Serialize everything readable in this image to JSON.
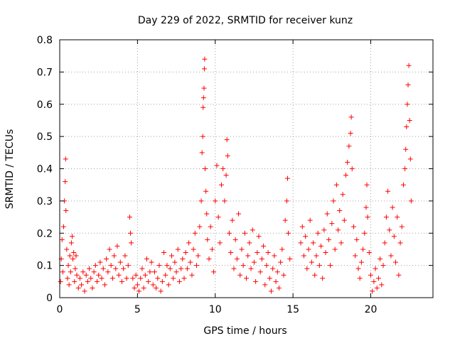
{
  "chart_data": {
    "type": "scatter",
    "title": "Day 229 of 2022, SRMTID for receiver kunz",
    "xlabel": "GPS time / hours",
    "ylabel": "SRMTID / TECUs",
    "xlim": [
      0,
      24
    ],
    "ylim": [
      0,
      0.8
    ],
    "xticks": [
      0,
      5,
      10,
      15,
      20
    ],
    "yticks": [
      0,
      0.1,
      0.2,
      0.3,
      0.4,
      0.5,
      0.6,
      0.7,
      0.8
    ],
    "xtick_labels": [
      "0",
      "5",
      "10",
      "15",
      "20"
    ],
    "ytick_labels": [
      "0",
      "0.1",
      "0.2",
      "0.3",
      "0.4",
      "0.5",
      "0.6",
      "0.7",
      "0.8"
    ],
    "grid": true,
    "marker": "+",
    "color": "#ff0000",
    "series": [
      {
        "name": "SRMTID",
        "points": [
          [
            0.05,
            0.05
          ],
          [
            0.1,
            0.12
          ],
          [
            0.15,
            0.18
          ],
          [
            0.2,
            0.08
          ],
          [
            0.25,
            0.22
          ],
          [
            0.3,
            0.3
          ],
          [
            0.35,
            0.36
          ],
          [
            0.38,
            0.43
          ],
          [
            0.4,
            0.27
          ],
          [
            0.45,
            0.15
          ],
          [
            0.5,
            0.06
          ],
          [
            0.55,
            0.1
          ],
          [
            0.6,
            0.04
          ],
          [
            0.65,
            0.13
          ],
          [
            0.7,
            0.08
          ],
          [
            0.75,
            0.17
          ],
          [
            0.8,
            0.19
          ],
          [
            0.85,
            0.12
          ],
          [
            0.9,
            0.14
          ],
          [
            0.95,
            0.05
          ],
          [
            1.0,
            0.09
          ],
          [
            1.05,
            0.13
          ],
          [
            1.1,
            0.07
          ],
          [
            1.2,
            0.03
          ],
          [
            1.3,
            0.06
          ],
          [
            1.4,
            0.04
          ],
          [
            1.5,
            0.08
          ],
          [
            1.6,
            0.02
          ],
          [
            1.7,
            0.07
          ],
          [
            1.8,
            0.05
          ],
          [
            1.9,
            0.09
          ],
          [
            2.0,
            0.06
          ],
          [
            2.1,
            0.03
          ],
          [
            2.2,
            0.08
          ],
          [
            2.3,
            0.1
          ],
          [
            2.4,
            0.05
          ],
          [
            2.5,
            0.07
          ],
          [
            2.6,
            0.11
          ],
          [
            2.7,
            0.06
          ],
          [
            2.8,
            0.09
          ],
          [
            2.9,
            0.04
          ],
          [
            3.0,
            0.12
          ],
          [
            3.1,
            0.08
          ],
          [
            3.2,
            0.15
          ],
          [
            3.3,
            0.1
          ],
          [
            3.4,
            0.06
          ],
          [
            3.5,
            0.13
          ],
          [
            3.6,
            0.09
          ],
          [
            3.7,
            0.16
          ],
          [
            3.8,
            0.07
          ],
          [
            3.9,
            0.11
          ],
          [
            4.0,
            0.05
          ],
          [
            4.1,
            0.09
          ],
          [
            4.2,
            0.13
          ],
          [
            4.3,
            0.06
          ],
          [
            4.4,
            0.1
          ],
          [
            4.5,
            0.25
          ],
          [
            4.55,
            0.2
          ],
          [
            4.6,
            0.17
          ],
          [
            4.7,
            0.06
          ],
          [
            4.8,
            0.03
          ],
          [
            4.9,
            0.07
          ],
          [
            5.0,
            0.04
          ],
          [
            5.1,
            0.02
          ],
          [
            5.2,
            0.06
          ],
          [
            5.3,
            0.09
          ],
          [
            5.4,
            0.03
          ],
          [
            5.5,
            0.07
          ],
          [
            5.6,
            0.12
          ],
          [
            5.7,
            0.05
          ],
          [
            5.8,
            0.08
          ],
          [
            5.9,
            0.11
          ],
          [
            6.0,
            0.04
          ],
          [
            6.1,
            0.08
          ],
          [
            6.2,
            0.03
          ],
          [
            6.3,
            0.06
          ],
          [
            6.4,
            0.1
          ],
          [
            6.5,
            0.02
          ],
          [
            6.6,
            0.05
          ],
          [
            6.7,
            0.14
          ],
          [
            6.8,
            0.07
          ],
          [
            6.9,
            0.1
          ],
          [
            7.0,
            0.04
          ],
          [
            7.1,
            0.09
          ],
          [
            7.2,
            0.13
          ],
          [
            7.3,
            0.06
          ],
          [
            7.4,
            0.11
          ],
          [
            7.5,
            0.08
          ],
          [
            7.6,
            0.15
          ],
          [
            7.7,
            0.05
          ],
          [
            7.8,
            0.09
          ],
          [
            7.9,
            0.12
          ],
          [
            8.0,
            0.06
          ],
          [
            8.1,
            0.14
          ],
          [
            8.2,
            0.09
          ],
          [
            8.3,
            0.17
          ],
          [
            8.4,
            0.11
          ],
          [
            8.5,
            0.07
          ],
          [
            8.6,
            0.15
          ],
          [
            8.7,
            0.2
          ],
          [
            8.8,
            0.1
          ],
          [
            8.9,
            0.13
          ],
          [
            9.0,
            0.22
          ],
          [
            9.1,
            0.3
          ],
          [
            9.15,
            0.45
          ],
          [
            9.2,
            0.5
          ],
          [
            9.22,
            0.59
          ],
          [
            9.25,
            0.62
          ],
          [
            9.28,
            0.65
          ],
          [
            9.3,
            0.71
          ],
          [
            9.32,
            0.74
          ],
          [
            9.35,
            0.4
          ],
          [
            9.4,
            0.33
          ],
          [
            9.45,
            0.26
          ],
          [
            9.5,
            0.18
          ],
          [
            9.6,
            0.12
          ],
          [
            9.7,
            0.22
          ],
          [
            9.8,
            0.15
          ],
          [
            9.9,
            0.08
          ],
          [
            10.0,
            0.3
          ],
          [
            10.1,
            0.41
          ],
          [
            10.2,
            0.25
          ],
          [
            10.3,
            0.17
          ],
          [
            10.4,
            0.35
          ],
          [
            10.5,
            0.4
          ],
          [
            10.6,
            0.3
          ],
          [
            10.7,
            0.38
          ],
          [
            10.75,
            0.49
          ],
          [
            10.8,
            0.44
          ],
          [
            10.9,
            0.2
          ],
          [
            11.0,
            0.14
          ],
          [
            11.1,
            0.24
          ],
          [
            11.2,
            0.09
          ],
          [
            11.3,
            0.18
          ],
          [
            11.4,
            0.12
          ],
          [
            11.5,
            0.26
          ],
          [
            11.6,
            0.07
          ],
          [
            11.7,
            0.15
          ],
          [
            11.8,
            0.1
          ],
          [
            11.9,
            0.2
          ],
          [
            12.0,
            0.06
          ],
          [
            12.1,
            0.13
          ],
          [
            12.2,
            0.17
          ],
          [
            12.3,
            0.09
          ],
          [
            12.4,
            0.21
          ],
          [
            12.5,
            0.11
          ],
          [
            12.6,
            0.05
          ],
          [
            12.7,
            0.14
          ],
          [
            12.8,
            0.19
          ],
          [
            12.9,
            0.08
          ],
          [
            13.0,
            0.12
          ],
          [
            13.1,
            0.16
          ],
          [
            13.2,
            0.04
          ],
          [
            13.3,
            0.1
          ],
          [
            13.4,
            0.14
          ],
          [
            13.5,
            0.06
          ],
          [
            13.6,
            0.02
          ],
          [
            13.7,
            0.09
          ],
          [
            13.8,
            0.13
          ],
          [
            13.9,
            0.05
          ],
          [
            14.0,
            0.08
          ],
          [
            14.1,
            0.03
          ],
          [
            14.2,
            0.11
          ],
          [
            14.3,
            0.15
          ],
          [
            14.4,
            0.07
          ],
          [
            14.5,
            0.24
          ],
          [
            14.6,
            0.3
          ],
          [
            14.65,
            0.37
          ],
          [
            14.7,
            0.2
          ],
          [
            14.8,
            0.12
          ],
          [
            15.5,
            0.17
          ],
          [
            15.6,
            0.22
          ],
          [
            15.7,
            0.13
          ],
          [
            15.8,
            0.19
          ],
          [
            15.9,
            0.09
          ],
          [
            16.0,
            0.15
          ],
          [
            16.1,
            0.24
          ],
          [
            16.2,
            0.11
          ],
          [
            16.3,
            0.17
          ],
          [
            16.4,
            0.07
          ],
          [
            16.5,
            0.13
          ],
          [
            16.6,
            0.2
          ],
          [
            16.7,
            0.1
          ],
          [
            16.8,
            0.16
          ],
          [
            16.9,
            0.06
          ],
          [
            17.0,
            0.21
          ],
          [
            17.1,
            0.14
          ],
          [
            17.2,
            0.26
          ],
          [
            17.3,
            0.18
          ],
          [
            17.4,
            0.1
          ],
          [
            17.5,
            0.23
          ],
          [
            17.6,
            0.3
          ],
          [
            17.7,
            0.15
          ],
          [
            17.8,
            0.35
          ],
          [
            17.9,
            0.21
          ],
          [
            18.0,
            0.27
          ],
          [
            18.1,
            0.17
          ],
          [
            18.2,
            0.32
          ],
          [
            18.3,
            0.24
          ],
          [
            18.4,
            0.38
          ],
          [
            18.5,
            0.42
          ],
          [
            18.6,
            0.47
          ],
          [
            18.7,
            0.51
          ],
          [
            18.75,
            0.56
          ],
          [
            18.8,
            0.4
          ],
          [
            18.9,
            0.22
          ],
          [
            19.0,
            0.13
          ],
          [
            19.1,
            0.18
          ],
          [
            19.2,
            0.09
          ],
          [
            19.3,
            0.06
          ],
          [
            19.4,
            0.11
          ],
          [
            19.5,
            0.15
          ],
          [
            19.6,
            0.2
          ],
          [
            19.7,
            0.28
          ],
          [
            19.75,
            0.35
          ],
          [
            19.8,
            0.25
          ],
          [
            19.9,
            0.14
          ],
          [
            20.0,
            0.07
          ],
          [
            20.1,
            0.02
          ],
          [
            20.2,
            0.05
          ],
          [
            20.3,
            0.09
          ],
          [
            20.4,
            0.03
          ],
          [
            20.5,
            0.06
          ],
          [
            20.6,
            0.12
          ],
          [
            20.7,
            0.04
          ],
          [
            20.8,
            0.1
          ],
          [
            20.9,
            0.17
          ],
          [
            21.0,
            0.25
          ],
          [
            21.1,
            0.33
          ],
          [
            21.2,
            0.21
          ],
          [
            21.3,
            0.13
          ],
          [
            21.4,
            0.28
          ],
          [
            21.5,
            0.19
          ],
          [
            21.6,
            0.11
          ],
          [
            21.7,
            0.25
          ],
          [
            21.8,
            0.07
          ],
          [
            21.9,
            0.17
          ],
          [
            22.0,
            0.22
          ],
          [
            22.1,
            0.35
          ],
          [
            22.2,
            0.4
          ],
          [
            22.25,
            0.46
          ],
          [
            22.3,
            0.53
          ],
          [
            22.35,
            0.6
          ],
          [
            22.4,
            0.66
          ],
          [
            22.45,
            0.72
          ],
          [
            22.5,
            0.55
          ],
          [
            22.55,
            0.43
          ],
          [
            22.6,
            0.3
          ]
        ]
      }
    ]
  }
}
